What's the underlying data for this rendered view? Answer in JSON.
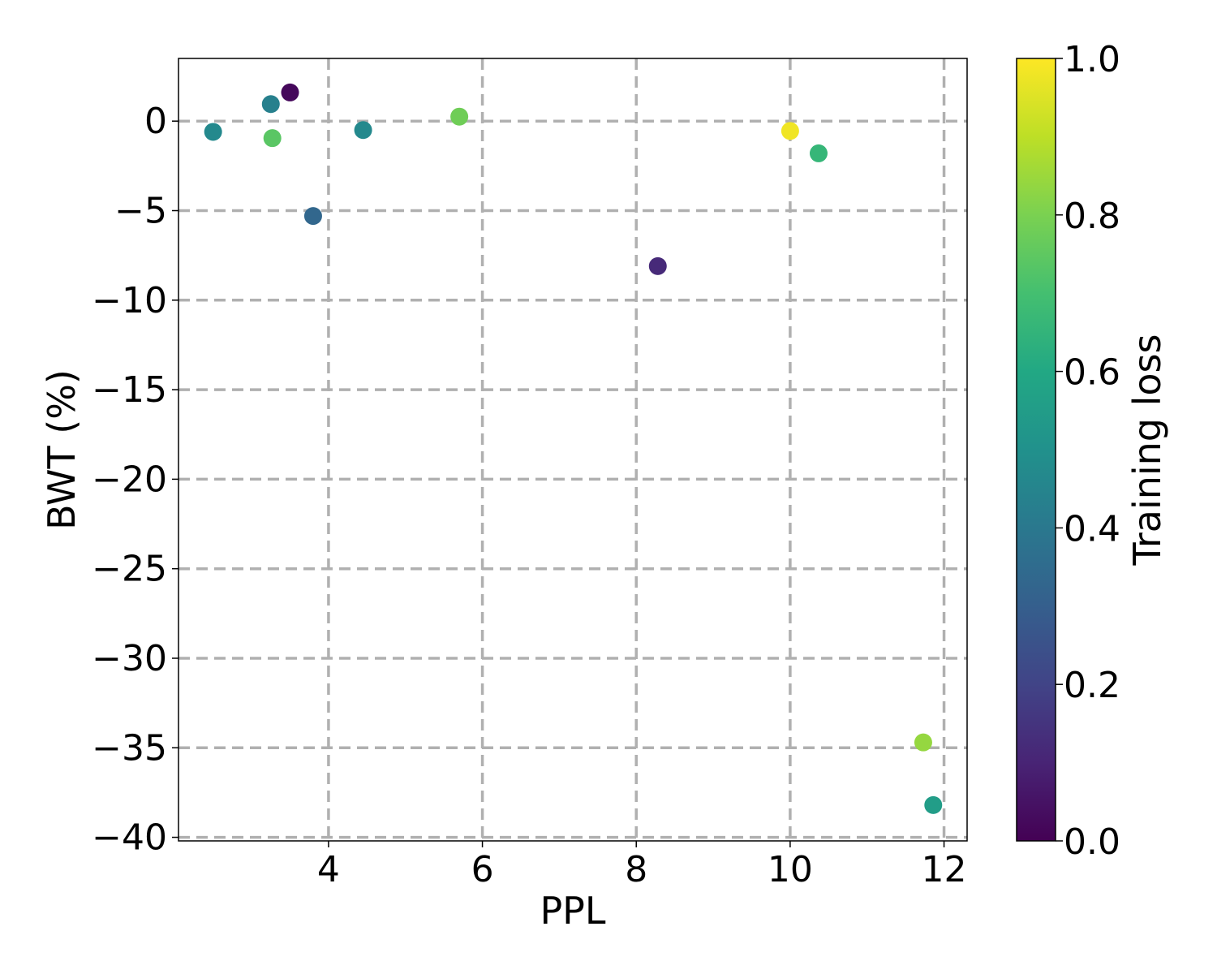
{
  "chart_data": {
    "type": "scatter",
    "xlabel": "PPL",
    "ylabel": "BWT (%)",
    "colorbar_label": "Training loss",
    "xlim": [
      2.05,
      12.3
    ],
    "ylim": [
      -40.2,
      3.5
    ],
    "xticks": [
      4,
      6,
      8,
      10,
      12
    ],
    "yticks": [
      0,
      -5,
      -10,
      -15,
      -20,
      -25,
      -30,
      -35,
      -40
    ],
    "ytick_labels": [
      "0",
      "−5",
      "−10",
      "−15",
      "−20",
      "−25",
      "−30",
      "−35",
      "−40"
    ],
    "colorbar_range": [
      0.0,
      1.0
    ],
    "colorbar_ticks": [
      "0.0",
      "0.2",
      "0.4",
      "0.6",
      "0.8",
      "1.0"
    ],
    "colormap": "viridis",
    "grid": true,
    "points": [
      {
        "x": 2.5,
        "y": -0.6,
        "loss": 0.47
      },
      {
        "x": 3.25,
        "y": 0.95,
        "loss": 0.43
      },
      {
        "x": 3.27,
        "y": -0.95,
        "loss": 0.74
      },
      {
        "x": 3.5,
        "y": 1.6,
        "loss": 0.02
      },
      {
        "x": 3.8,
        "y": -5.3,
        "loss": 0.33
      },
      {
        "x": 4.45,
        "y": -0.5,
        "loss": 0.47
      },
      {
        "x": 5.7,
        "y": 0.25,
        "loss": 0.78
      },
      {
        "x": 8.28,
        "y": -8.1,
        "loss": 0.12
      },
      {
        "x": 10.0,
        "y": -0.55,
        "loss": 0.98
      },
      {
        "x": 10.37,
        "y": -1.8,
        "loss": 0.66
      },
      {
        "x": 11.73,
        "y": -34.7,
        "loss": 0.84
      },
      {
        "x": 11.86,
        "y": -38.2,
        "loss": 0.55
      }
    ]
  }
}
